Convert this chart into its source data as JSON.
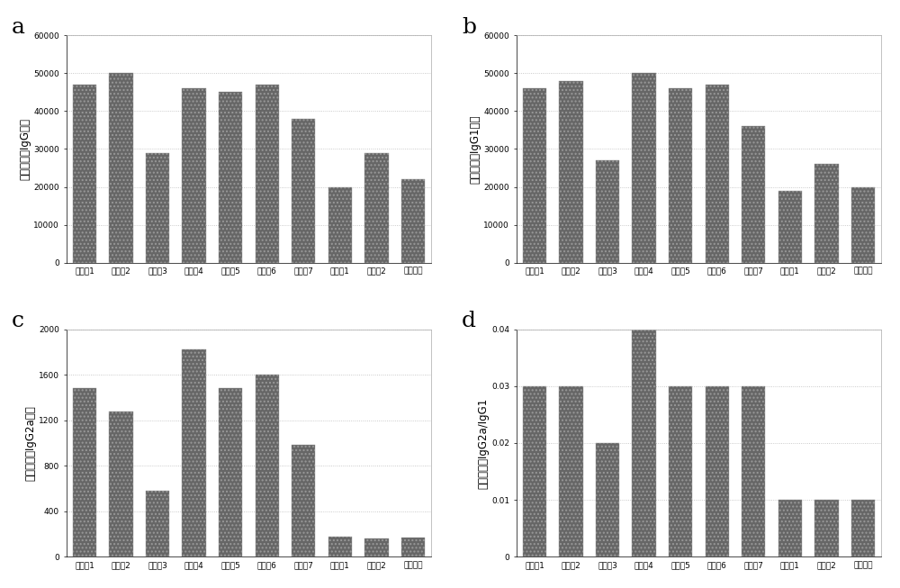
{
  "categories": [
    "实验例1",
    "实验例2",
    "实验例3",
    "实验例4",
    "实验例5",
    "实验例6",
    "实验例7",
    "对比例1",
    "对比例2",
    "阳性对照"
  ],
  "a_values": [
    47000,
    50000,
    29000,
    46000,
    45000,
    47000,
    38000,
    20000,
    29000,
    22000
  ],
  "b_values": [
    46000,
    48000,
    27000,
    50000,
    46000,
    47000,
    36000,
    19000,
    26000,
    20000
  ],
  "c_values": [
    1480,
    1280,
    580,
    1820,
    1480,
    1600,
    980,
    180,
    160,
    170
  ],
  "d_values": [
    0.03,
    0.03,
    0.02,
    0.04,
    0.03,
    0.03,
    0.03,
    0.01,
    0.01,
    0.01
  ],
  "a_ylabel": "多糖特异性IgG滴度",
  "b_ylabel": "多糖特异性IgG1滴度",
  "c_ylabel": "多糖特异性IgG2a滴度",
  "d_ylabel": "多糖特异性IgG2a/IgG1",
  "a_ylim": [
    0,
    60000
  ],
  "b_ylim": [
    0,
    60000
  ],
  "c_ylim": [
    0,
    2000
  ],
  "d_ylim": [
    0,
    0.04
  ],
  "a_yticks": [
    0,
    10000,
    20000,
    30000,
    40000,
    50000,
    60000
  ],
  "b_yticks": [
    0,
    10000,
    20000,
    30000,
    40000,
    50000,
    60000
  ],
  "c_yticks": [
    0,
    400,
    800,
    1200,
    1600,
    2000
  ],
  "d_yticks": [
    0,
    0.01,
    0.02,
    0.03,
    0.04
  ],
  "bar_color": "#666666",
  "bg_color": "#ffffff",
  "panel_labels": [
    "a",
    "b",
    "c",
    "d"
  ],
  "label_fontsize": 18,
  "tick_fontsize": 6.5,
  "ylabel_fontsize": 8.5,
  "grid_color": "#bbbbbb",
  "grid_linestyle": "dotted"
}
